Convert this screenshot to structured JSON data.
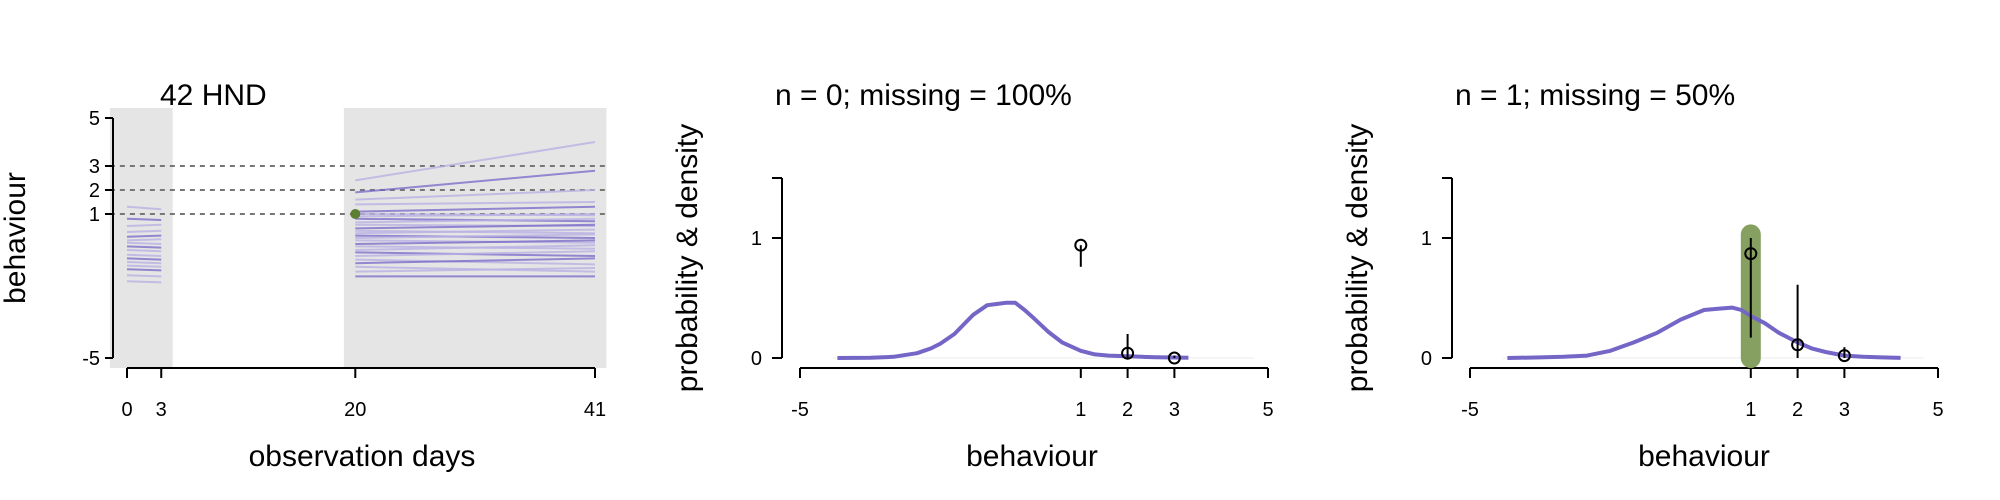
{
  "colors": {
    "series": "#7466c7",
    "series_light": "#b9b2e4",
    "highlight": "#5c7f33",
    "highlight_band": "#86a061",
    "panel_bg": "#e5e5e5",
    "axis": "#000000",
    "reference_line": "#777777"
  },
  "chart_data": [
    {
      "type": "line",
      "title": "42 HND",
      "xlabel": "observation days",
      "ylabel": "behaviour",
      "xlim": [
        -1.5,
        42
      ],
      "ylim": [
        -5,
        5
      ],
      "x_ticks": [
        0,
        3,
        20,
        41
      ],
      "y_ticks": [
        -5,
        1,
        2,
        3,
        5
      ],
      "reference_lines_y": [
        1,
        2,
        3
      ],
      "observation_windows": [
        [
          -1.5,
          4
        ],
        [
          19,
          42
        ]
      ],
      "observed_point": {
        "x": 20,
        "y": 1
      },
      "trajectory_segments": [
        {
          "x": [
            0,
            3
          ],
          "start": [
            1.3,
            0.8,
            0.5,
            0.25,
            0.05,
            -0.1,
            -0.2,
            -0.35,
            -0.5,
            -0.7,
            -0.85,
            -1.0,
            -1.15,
            -1.3,
            -1.55,
            -1.8
          ],
          "end": [
            1.2,
            0.75,
            0.55,
            0.3,
            0.1,
            -0.05,
            -0.25,
            -0.4,
            -0.55,
            -0.75,
            -0.9,
            -1.05,
            -1.2,
            -1.35,
            -1.6,
            -1.85
          ]
        },
        {
          "x": [
            20,
            41
          ],
          "start": [
            2.4,
            1.9,
            1.6,
            1.4,
            1.1,
            1.0,
            0.9,
            0.8,
            0.65,
            0.55,
            0.4,
            0.3,
            0.2,
            0.1,
            0.0,
            -0.1,
            -0.25,
            -0.35,
            -0.5,
            -0.6,
            -0.75,
            -0.9,
            -1.05,
            -1.2,
            -1.4,
            -1.6
          ],
          "end": [
            4.0,
            2.8,
            2.0,
            1.5,
            1.3,
            0.95,
            1.0,
            0.7,
            0.8,
            0.5,
            0.55,
            0.2,
            0.35,
            0.0,
            0.15,
            -0.2,
            -0.1,
            -0.45,
            -0.3,
            -0.75,
            -0.55,
            -1.1,
            -0.85,
            -1.4,
            -1.25,
            -1.6
          ]
        }
      ]
    },
    {
      "type": "line",
      "title": "n = 0; missing = 100%",
      "xlabel": "behaviour",
      "ylabel": "probability & density",
      "xlim": [
        -5,
        5
      ],
      "ylim": [
        0,
        1.5
      ],
      "x_ticks": [
        -5,
        1,
        2,
        3,
        5
      ],
      "y_ticks": [
        0,
        1
      ],
      "density": {
        "x": [
          -4.2,
          -3.5,
          -3.0,
          -2.5,
          -2.2,
          -2.0,
          -1.7,
          -1.5,
          -1.3,
          -1.0,
          -0.8,
          -0.6,
          -0.4,
          -0.2,
          0.0,
          0.3,
          0.6,
          1.0,
          1.3,
          1.6,
          2.0,
          2.3,
          2.6,
          3.0,
          3.3
        ],
        "y": [
          0,
          0.002,
          0.01,
          0.04,
          0.08,
          0.12,
          0.2,
          0.28,
          0.36,
          0.44,
          0.45,
          0.46,
          0.46,
          0.4,
          0.33,
          0.22,
          0.13,
          0.06,
          0.03,
          0.02,
          0.015,
          0.01,
          0.007,
          0.004,
          0.002
        ]
      },
      "points": [
        {
          "x": 1,
          "y": 0.94,
          "lower": 0.76,
          "upper": 0.94
        },
        {
          "x": 2,
          "y": 0.04,
          "lower": 0.0,
          "upper": 0.2
        },
        {
          "x": 3,
          "y": 0.0,
          "lower": 0.0,
          "upper": 0.02
        }
      ]
    },
    {
      "type": "line",
      "title": "n = 1; missing = 50%",
      "xlabel": "behaviour",
      "ylabel": "probability & density",
      "xlim": [
        -5,
        5
      ],
      "ylim": [
        0,
        1.5
      ],
      "x_ticks": [
        -5,
        1,
        2,
        3,
        5
      ],
      "y_ticks": [
        0,
        1
      ],
      "highlight_x": 1,
      "highlight_range": [
        0,
        1.03
      ],
      "density": {
        "x": [
          -4.2,
          -3.5,
          -3.0,
          -2.5,
          -2.0,
          -1.5,
          -1.0,
          -0.5,
          0.0,
          0.3,
          0.6,
          0.8,
          1.0,
          1.3,
          1.6,
          2.0,
          2.3,
          2.6,
          3.0,
          3.4,
          3.8,
          4.2
        ],
        "y": [
          0,
          0.005,
          0.01,
          0.02,
          0.06,
          0.13,
          0.21,
          0.32,
          0.4,
          0.41,
          0.42,
          0.4,
          0.35,
          0.29,
          0.21,
          0.13,
          0.08,
          0.05,
          0.02,
          0.01,
          0.005,
          0.001
        ]
      },
      "points": [
        {
          "x": 1,
          "y": 0.87,
          "lower": 0.17,
          "upper": 1.0
        },
        {
          "x": 2,
          "y": 0.11,
          "lower": 0.0,
          "upper": 0.61
        },
        {
          "x": 3,
          "y": 0.02,
          "lower": 0.0,
          "upper": 0.09
        }
      ]
    }
  ]
}
